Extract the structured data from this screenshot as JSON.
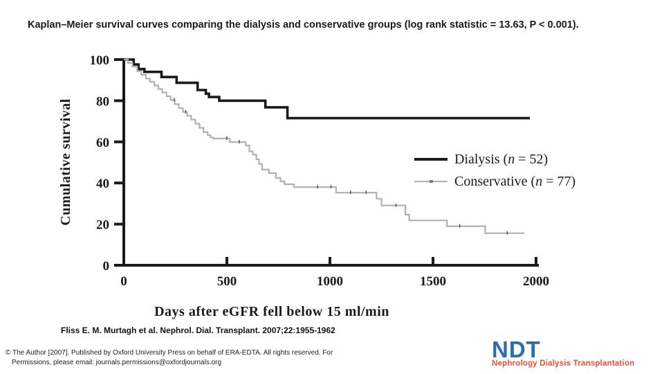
{
  "title": "Kaplan–Meier survival curves comparing the dialysis and conservative groups (log rank statistic = 13.63, P < 0.001).",
  "chart_data": {
    "type": "line",
    "subtype": "kaplan-meier-step",
    "title": "",
    "xlabel": "Days after eGFR fell below 15 ml/min",
    "ylabel": "Cumulative survival",
    "xlim": [
      0,
      2000
    ],
    "ylim": [
      0,
      100
    ],
    "x_ticks": [
      0,
      500,
      1000,
      1500,
      2000
    ],
    "y_ticks": [
      0,
      20,
      40,
      60,
      80,
      100
    ],
    "grid": false,
    "legend_position": "middle-right",
    "axis_color": "#1a1a1a",
    "censor_color": "#606060",
    "series": [
      {
        "id": "dialysis",
        "name": "Dialysis (n = 52)",
        "color": "#1a1a1a",
        "width": 3.6,
        "points": [
          [
            0,
            100
          ],
          [
            48,
            97.6
          ],
          [
            71,
            95.4
          ],
          [
            100,
            94.0
          ],
          [
            183,
            91.5
          ],
          [
            256,
            88.7
          ],
          [
            358,
            85.2
          ],
          [
            398,
            83.4
          ],
          [
            413,
            81.8
          ],
          [
            463,
            80.0
          ],
          [
            687,
            76.8
          ],
          [
            794,
            71.5
          ],
          [
            1970,
            71.5
          ]
        ]
      },
      {
        "id": "conservative",
        "name": "Conservative (n = 77)",
        "color": "#b0b0b0",
        "width": 2.2,
        "points": [
          [
            0,
            100
          ],
          [
            20,
            98.3
          ],
          [
            42,
            96.5
          ],
          [
            65,
            94.4
          ],
          [
            85,
            92.6
          ],
          [
            107,
            90.8
          ],
          [
            127,
            89.2
          ],
          [
            148,
            87.4
          ],
          [
            167,
            85.7
          ],
          [
            187,
            84.0
          ],
          [
            207,
            82.2
          ],
          [
            227,
            80.3
          ],
          [
            247,
            78.3
          ],
          [
            267,
            76.4
          ],
          [
            287,
            74.5
          ],
          [
            307,
            72.7
          ],
          [
            327,
            70.8
          ],
          [
            347,
            68.8
          ],
          [
            367,
            66.8
          ],
          [
            387,
            64.7
          ],
          [
            407,
            63.3
          ],
          [
            420,
            62.2
          ],
          [
            434,
            61.6
          ],
          [
            514,
            59.9
          ],
          [
            592,
            58.2
          ],
          [
            609,
            55.4
          ],
          [
            626,
            53.8
          ],
          [
            643,
            51.5
          ],
          [
            656,
            49.3
          ],
          [
            671,
            46.5
          ],
          [
            704,
            44.8
          ],
          [
            738,
            42.5
          ],
          [
            760,
            40.8
          ],
          [
            779,
            39.4
          ],
          [
            825,
            38.0
          ],
          [
            1030,
            35.3
          ],
          [
            1226,
            32.4
          ],
          [
            1250,
            29.1
          ],
          [
            1366,
            24.6
          ],
          [
            1385,
            21.8
          ],
          [
            1568,
            19.0
          ],
          [
            1753,
            15.6
          ],
          [
            1944,
            15.6
          ]
        ],
        "censor_days": [
          245,
          300,
          500,
          560,
          940,
          1005,
          1100,
          1175,
          1320,
          1630,
          1860
        ]
      }
    ]
  },
  "legend": {
    "items": [
      {
        "pre": "Dialysis (",
        "var": "n",
        "post": " = 52)"
      },
      {
        "pre": "Conservative (",
        "var": "n",
        "post": " = 77)"
      }
    ]
  },
  "citation": "Fliss E. M. Murtagh et al. Nephrol. Dial. Transplant. 2007;22:1955-1962",
  "footer": {
    "line1": "© The Author [2007]. Published by Oxford University Press on behalf of ERA-EDTA. All rights reserved. For",
    "line2": "Permissions, please email: journals.permissions@oxfordjournals.org"
  },
  "logo": {
    "acronym": "NDT",
    "subtitle": "Nephrology Dialysis Transplantation",
    "acronym_color": "#2e6cb0",
    "subtitle_color": "#e0523a"
  }
}
